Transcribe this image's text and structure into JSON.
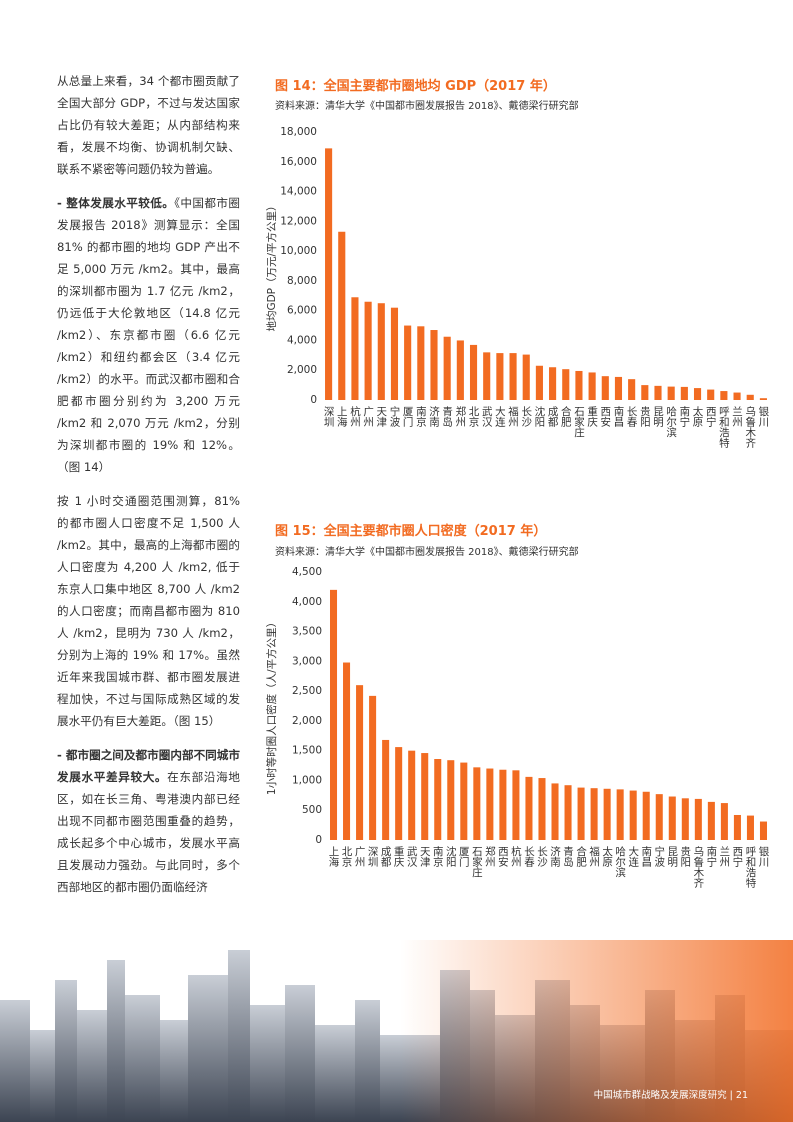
{
  "article": {
    "paragraphs": [
      {
        "bold": "",
        "text": "从总量上来看，34 个都市圈贡献了全国大部分 GDP，不过与发达国家占比仍有较大差距；从内部结构来看，发展不均衡、协调机制欠缺、联系不紧密等问题仍较为普遍。"
      },
      {
        "bold": "- 整体发展水平较低。",
        "text": "《中国都市圈发展报告 2018》测算显示：全国 81% 的都市圈的地均 GDP 产出不足 5,000 万元 /km2。其中，最高的深圳都市圈为 1.7 亿元 /km2，仍远低于大伦敦地区（14.8 亿元 /km2）、东京都市圈（6.6 亿元 /km2）和纽约都会区（3.4 亿元 /km2）的水平。而武汉都市圈和合肥都市圈分别约为 3,200 万元 /km2 和 2,070 万元 /km2，分别为深圳都市圈的 19% 和 12%。（图 14）"
      },
      {
        "bold": "",
        "text": "按 1 小时交通圈范围测算，81% 的都市圈人口密度不足 1,500 人 /km2。其中，最高的上海都市圈的人口密度为 4,200 人 /km2, 低于东京人口集中地区 8,700 人 /km2 的人口密度；而南昌都市圈为 810 人 /km2，昆明为 730 人 /km2，分别为上海的 19% 和 17%。虽然近年来我国城市群、都市圈发展进程加快，不过与国际成熟区域的发展水平仍有巨大差距。（图 15）"
      },
      {
        "bold": "- 都市圈之间及都市圈内部不同城市发展水平差异较大。",
        "text": "在东部沿海地区，如在长三角、粤港澳内部已经出现不同都市圈范围重叠的趋势，成长起多个中心城市，发展水平高且发展动力强劲。与此同时，多个西部地区的都市圈仍面临经济"
      }
    ]
  },
  "chart_data": [
    {
      "type": "bar",
      "title": "图 14：全国主要都市圈地均 GDP（2017 年）",
      "subtitle": "资料来源：清华大学《中国都市圈发展报告 2018》、戴德梁行研究部",
      "y_label": "地均GDP（万元/平方公里）",
      "color": "#f26b21",
      "categories": [
        "深圳",
        "上海",
        "杭州",
        "广州",
        "天津",
        "宁波",
        "厦门",
        "南京",
        "济南",
        "青岛",
        "郑州",
        "北京",
        "武汉",
        "大连",
        "福州",
        "长沙",
        "沈阳",
        "成都",
        "合肥",
        "石家庄",
        "重庆",
        "西安",
        "南昌",
        "长春",
        "贵阳",
        "昆明",
        "哈尔滨",
        "南宁",
        "太原",
        "西宁",
        "呼和浩特",
        "兰州",
        "乌鲁木齐",
        "银川"
      ],
      "values": [
        16900,
        11300,
        6900,
        6600,
        6500,
        6200,
        5000,
        4950,
        4700,
        4250,
        4000,
        3700,
        3200,
        3150,
        3150,
        3050,
        2300,
        2200,
        2070,
        1950,
        1850,
        1600,
        1550,
        1400,
        1000,
        950,
        900,
        880,
        800,
        700,
        600,
        500,
        350,
        120
      ],
      "ylim": [
        0,
        18000
      ],
      "yticks": [
        0,
        {
          "value": 2000,
          "label": "2,000"
        },
        {
          "value": 4000,
          "label": "4,000"
        },
        {
          "value": 6000,
          "label": "6,000"
        },
        {
          "value": 8000,
          "label": "8,000"
        },
        {
          "value": 10000,
          "label": "10,000"
        },
        {
          "value": 12000,
          "label": "12,000"
        },
        {
          "value": 14000,
          "label": "14,000"
        },
        {
          "value": 16000,
          "label": "16,000"
        },
        {
          "value": 18000,
          "label": "18,000"
        }
      ],
      "grid": false
    },
    {
      "type": "bar",
      "title": "图 15：全国主要都市圈人口密度（2017 年）",
      "subtitle": "资料来源：清华大学《中国都市圈发展报告 2018》、戴德梁行研究部",
      "y_label": "1小时等时圈人口密度（人/平方公里）",
      "color": "#f26b21",
      "categories": [
        "上海",
        "北京",
        "广州",
        "深圳",
        "成都",
        "重庆",
        "武汉",
        "天津",
        "南京",
        "沈阳",
        "厦门",
        "石家庄",
        "郑州",
        "西安",
        "杭州",
        "长春",
        "长沙",
        "济南",
        "青岛",
        "合肥",
        "福州",
        "太原",
        "哈尔滨",
        "大连",
        "南昌",
        "宁波",
        "昆明",
        "贵阳",
        "乌鲁木齐",
        "南宁",
        "兰州",
        "西宁",
        "呼和浩特",
        "银川"
      ],
      "values": [
        4200,
        2980,
        2600,
        2420,
        1680,
        1560,
        1500,
        1460,
        1360,
        1340,
        1300,
        1220,
        1200,
        1180,
        1170,
        1060,
        1040,
        950,
        920,
        880,
        870,
        860,
        850,
        830,
        810,
        770,
        730,
        700,
        690,
        640,
        620,
        420,
        410,
        310
      ],
      "ylim": [
        0,
        4500
      ],
      "yticks": [
        0,
        500,
        {
          "value": 1000,
          "label": "1,000"
        },
        {
          "value": 1500,
          "label": "1,500"
        },
        {
          "value": 2000,
          "label": "2,000"
        },
        {
          "value": 2500,
          "label": "2,500"
        },
        {
          "value": 3000,
          "label": "3,000"
        },
        {
          "value": 3500,
          "label": "3,500"
        },
        {
          "value": 4000,
          "label": "4,000"
        },
        {
          "value": 4500,
          "label": "4,500"
        }
      ],
      "grid": false
    }
  ],
  "footer": {
    "title": "中国城市群战略及发展深度研究",
    "page": "21"
  }
}
